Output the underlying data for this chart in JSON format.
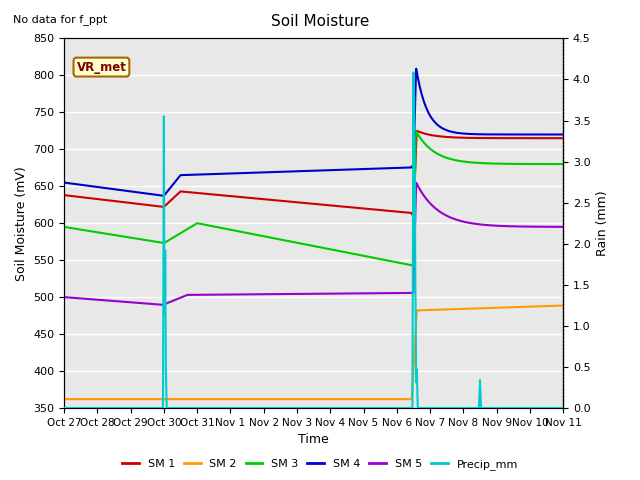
{
  "title": "Soil Moisture",
  "subtitle": "No data for f_ppt",
  "xlabel": "Time",
  "ylabel_left": "Soil Moisture (mV)",
  "ylabel_right": "Rain (mm)",
  "ylim_left": [
    350,
    850
  ],
  "ylim_right": [
    0.0,
    4.5
  ],
  "yticks_left": [
    350,
    400,
    450,
    500,
    550,
    600,
    650,
    700,
    750,
    800,
    850
  ],
  "yticks_right": [
    0.0,
    0.5,
    1.0,
    1.5,
    2.0,
    2.5,
    3.0,
    3.5,
    4.0,
    4.5
  ],
  "bg_color": "#e8e8e8",
  "grid_color": "#ffffff",
  "annotation_box": "VR_met",
  "legend_entries": [
    "SM 1",
    "SM 2",
    "SM 3",
    "SM 4",
    "SM 5",
    "Precip_mm"
  ],
  "legend_colors": [
    "#cc0000",
    "#ff9900",
    "#00cc00",
    "#0000cc",
    "#9900cc",
    "#00cccc"
  ],
  "sm1_color": "#cc0000",
  "sm2_color": "#ff9900",
  "sm3_color": "#00cc00",
  "sm4_color": "#0000cc",
  "sm5_color": "#9900cc",
  "precip_color": "#00cccc",
  "xtick_labels": [
    "Oct 27",
    "Oct 28",
    "Oct 29",
    "Oct 30",
    "Oct 31",
    "Nov 1",
    "Nov 2",
    "Nov 3",
    "Nov 4",
    "Nov 5",
    "Nov 6",
    "Nov 7",
    "Nov 8",
    "Nov 9",
    "Nov 10",
    "Nov 11"
  ],
  "xtick_positions": [
    0,
    1,
    2,
    3,
    4,
    5,
    6,
    7,
    8,
    9,
    10,
    11,
    12,
    13,
    14,
    15
  ]
}
